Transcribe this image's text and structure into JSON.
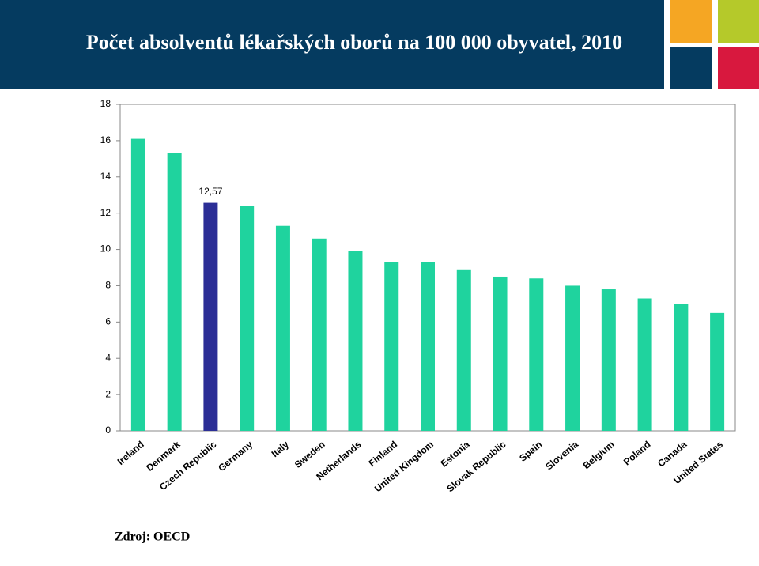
{
  "chart_data": {
    "type": "bar",
    "title": "Počet absolventů lékařských oborů na 100 000 obyvatel, 2010",
    "source": "Zdroj: OECD",
    "categories": [
      "Ireland",
      "Denmark",
      "Czech Republic",
      "Germany",
      "Italy",
      "Sweden",
      "Netherlands",
      "Finland",
      "United Kingdom",
      "Estonia",
      "Slovak Republic",
      "Spain",
      "Slovenia",
      "Belgium",
      "Poland",
      "Canada",
      "United States"
    ],
    "values": [
      16.1,
      15.3,
      12.57,
      12.4,
      11.3,
      10.6,
      9.9,
      9.3,
      9.3,
      8.9,
      8.5,
      8.4,
      8.0,
      7.8,
      7.3,
      7.0,
      6.5
    ],
    "value_labels": [
      null,
      null,
      "12,57",
      null,
      null,
      null,
      null,
      null,
      null,
      null,
      null,
      null,
      null,
      null,
      null,
      null,
      null
    ],
    "colors": [
      "#1fd39e",
      "#1fd39e",
      "#2b2e96",
      "#1fd39e",
      "#1fd39e",
      "#1fd39e",
      "#1fd39e",
      "#1fd39e",
      "#1fd39e",
      "#1fd39e",
      "#1fd39e",
      "#1fd39e",
      "#1fd39e",
      "#1fd39e",
      "#1fd39e",
      "#1fd39e",
      "#1fd39e"
    ],
    "ylim": [
      0,
      18
    ],
    "yticks": [
      0,
      2,
      4,
      6,
      8,
      10,
      12,
      14,
      16,
      18
    ],
    "grid": false
  }
}
